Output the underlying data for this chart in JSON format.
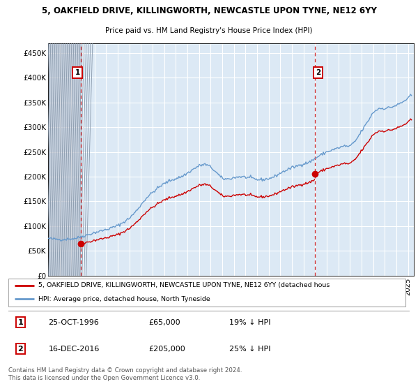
{
  "title": "5, OAKFIELD DRIVE, KILLINGWORTH, NEWCASTLE UPON TYNE, NE12 6YY",
  "subtitle": "Price paid vs. HM Land Registry's House Price Index (HPI)",
  "ylabel_ticks": [
    "£0",
    "£50K",
    "£100K",
    "£150K",
    "£200K",
    "£250K",
    "£300K",
    "£350K",
    "£400K",
    "£450K"
  ],
  "ytick_values": [
    0,
    50000,
    100000,
    150000,
    200000,
    250000,
    300000,
    350000,
    400000,
    450000
  ],
  "ylim": [
    0,
    470000
  ],
  "xlim_start": 1994.0,
  "xlim_end": 2025.5,
  "purchase1_x": 1996.82,
  "purchase1_y": 65000,
  "purchase2_x": 2016.96,
  "purchase2_y": 205000,
  "purchase_color": "#cc0000",
  "hpi_color": "#6699cc",
  "plot_bg_color": "#dce9f5",
  "legend_property_label": "5, OAKFIELD DRIVE, KILLINGWORTH, NEWCASTLE UPON TYNE, NE12 6YY (detached hous",
  "legend_hpi_label": "HPI: Average price, detached house, North Tyneside",
  "annotation1_date": "25-OCT-1996",
  "annotation1_price": "£65,000",
  "annotation1_hpi": "19% ↓ HPI",
  "annotation2_date": "16-DEC-2016",
  "annotation2_price": "£205,000",
  "annotation2_hpi": "25% ↓ HPI",
  "footer_text": "Contains HM Land Registry data © Crown copyright and database right 2024.\nThis data is licensed under the Open Government Licence v3.0.",
  "grid_color": "#ffffff",
  "hpi_anchors_x": [
    1994.0,
    1994.5,
    1995.0,
    1995.5,
    1996.0,
    1996.5,
    1997.0,
    1997.5,
    1998.0,
    1998.5,
    1999.0,
    1999.5,
    2000.0,
    2000.5,
    2001.0,
    2001.5,
    2002.0,
    2002.5,
    2003.0,
    2003.5,
    2004.0,
    2004.5,
    2005.0,
    2005.5,
    2006.0,
    2006.5,
    2007.0,
    2007.5,
    2008.0,
    2008.5,
    2009.0,
    2009.5,
    2010.0,
    2010.5,
    2011.0,
    2011.5,
    2012.0,
    2012.5,
    2013.0,
    2013.5,
    2014.0,
    2014.5,
    2015.0,
    2015.5,
    2016.0,
    2016.5,
    2017.0,
    2017.5,
    2018.0,
    2018.5,
    2019.0,
    2019.5,
    2020.0,
    2020.5,
    2021.0,
    2021.5,
    2022.0,
    2022.5,
    2023.0,
    2023.5,
    2024.0,
    2024.5,
    2025.0,
    2025.3
  ],
  "hpi_anchors_y": [
    75000,
    74000,
    73000,
    73500,
    74500,
    76000,
    80000,
    83000,
    87000,
    90000,
    93000,
    97000,
    101000,
    108000,
    116000,
    128000,
    143000,
    158000,
    168000,
    178000,
    186000,
    192000,
    196000,
    200000,
    207000,
    215000,
    222000,
    225000,
    220000,
    208000,
    196000,
    195000,
    198000,
    200000,
    199000,
    197000,
    194000,
    194000,
    196000,
    200000,
    207000,
    213000,
    218000,
    222000,
    226000,
    229000,
    237000,
    244000,
    250000,
    254000,
    258000,
    262000,
    261000,
    273000,
    292000,
    310000,
    330000,
    338000,
    338000,
    340000,
    344000,
    350000,
    358000,
    365000
  ]
}
